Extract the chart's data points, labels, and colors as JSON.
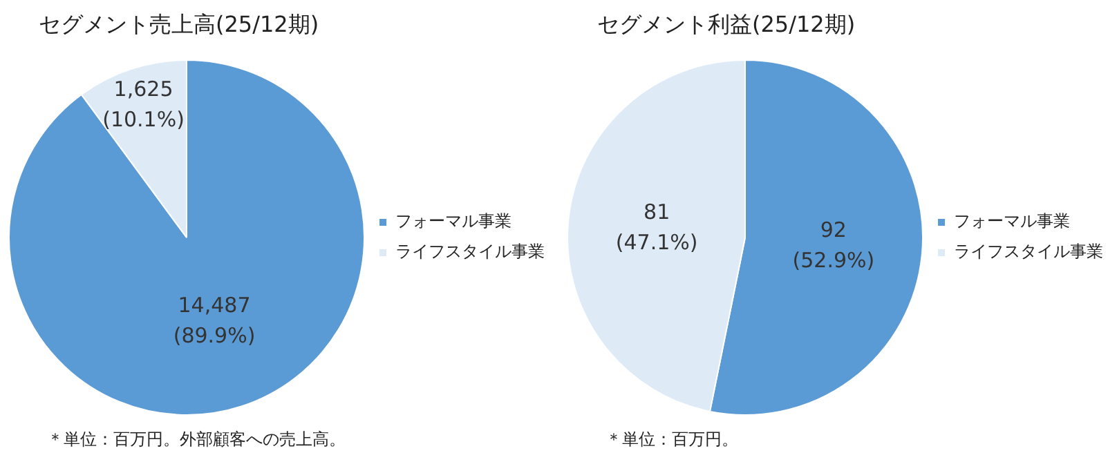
{
  "chart_data": [
    {
      "type": "pie",
      "title": "セグメント売上高(25/12期)",
      "categories": [
        "フォーマル事業",
        "ライフスタイル事業"
      ],
      "values": [
        14487,
        1625
      ],
      "colors": [
        "#5b9bd5",
        "#deebf7"
      ],
      "value_labels": [
        "14,487\n(89.9%)",
        "1,625\n(10.1%)"
      ],
      "legend": "right",
      "annotations": [
        "＊単位：百万円。外部顧客への売上高。"
      ]
    },
    {
      "type": "pie",
      "title": "セグメント利益(25/12期)",
      "categories": [
        "フォーマル事業",
        "ライフスタイル事業"
      ],
      "values": [
        92,
        81
      ],
      "colors": [
        "#5b9bd5",
        "#deebf7"
      ],
      "value_labels": [
        "92\n(52.9%)",
        "81\n(47.1%)"
      ],
      "legend": "right",
      "annotations": [
        "＊単位：百万円。"
      ]
    }
  ]
}
